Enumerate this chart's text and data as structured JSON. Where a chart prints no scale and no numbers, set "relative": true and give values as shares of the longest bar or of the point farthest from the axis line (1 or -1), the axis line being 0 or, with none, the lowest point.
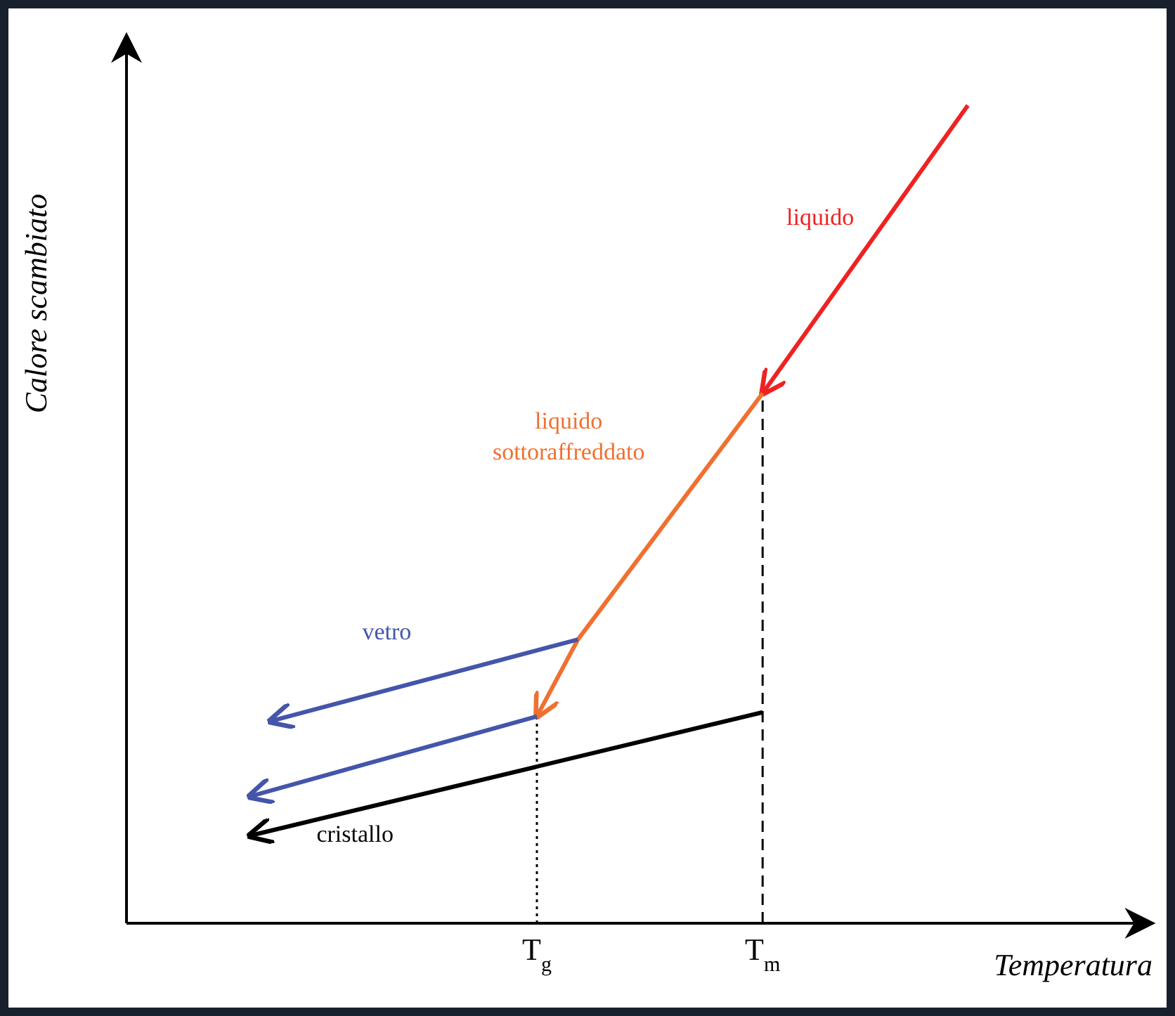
{
  "chart_data": {
    "type": "line",
    "relative": true,
    "xlabel": "Temperatura",
    "ylabel": "Calore scambiato",
    "categories": [
      null,
      null,
      null,
      null,
      null,
      null,
      null,
      null,
      null,
      null,
      null,
      null,
      null,
      null,
      null,
      null,
      null,
      null,
      null,
      null,
      "T$_{g}$",
      null,
      null,
      null,
      null,
      null,
      null,
      null,
      null,
      null,
      null,
      "T$_{m}$",
      null,
      null,
      null,
      null,
      null,
      null,
      null,
      null,
      null,
      null,
      null,
      null,
      null,
      null,
      null,
      null,
      null,
      null,
      null
    ],
    "grid": false,
    "legend": false,
    "marker": "none",
    "ref_lines": [
      {
        "axis": "x",
        "value": "T$_{m}$",
        "line_style": "dashed",
        "color": "#000000"
      },
      {
        "axis": "x",
        "value": "T$_{g}$",
        "line_style": "dotted",
        "color": "#000000"
      }
    ],
    "series": [
      {
        "name": "liquido",
        "color": "#ee2222",
        "line_style": "solid",
        "values": [
          null,
          null,
          null,
          null,
          null,
          null,
          null,
          null,
          null,
          null,
          null,
          null,
          null,
          null,
          null,
          null,
          null,
          null,
          null,
          null,
          null,
          null,
          null,
          null,
          null,
          null,
          null,
          null,
          null,
          null,
          null,
          0.648,
          null,
          null,
          null,
          null,
          null,
          null,
          null,
          null,
          null,
          1,
          null,
          null,
          null,
          null,
          null,
          null,
          null,
          null,
          null
        ]
      },
      {
        "name": "liquido sottoraffreddato",
        "color": "#f07030",
        "line_style": "solid",
        "values": [
          null,
          null,
          null,
          null,
          null,
          null,
          null,
          null,
          null,
          null,
          null,
          null,
          null,
          null,
          null,
          null,
          null,
          null,
          null,
          null,
          0.253,
          null,
          0.347,
          null,
          null,
          null,
          null,
          null,
          null,
          null,
          null,
          0.648,
          null,
          null,
          null,
          null,
          null,
          null,
          null,
          null,
          null,
          null,
          null,
          null,
          null,
          null,
          null,
          null,
          null,
          null,
          null
        ]
      },
      {
        "name": "vetro",
        "color": "#4455aa",
        "line_style": "solid",
        "values": [
          null,
          null,
          null,
          null,
          null,
          null,
          null,
          0.247,
          null,
          null,
          null,
          null,
          null,
          null,
          null,
          null,
          null,
          null,
          null,
          null,
          null,
          null,
          0.347,
          null,
          null,
          null,
          null,
          null,
          null,
          null,
          null,
          null,
          null,
          null,
          null,
          null,
          null,
          null,
          null,
          null,
          null,
          null,
          null,
          null,
          null,
          null,
          null,
          null,
          null,
          null,
          null
        ]
      },
      {
        "color": "#4455aa",
        "line_style": "solid",
        "values": [
          null,
          null,
          null,
          null,
          null,
          null,
          0.155,
          null,
          null,
          null,
          null,
          null,
          null,
          null,
          null,
          null,
          null,
          null,
          null,
          null,
          0.253,
          null,
          null,
          null,
          null,
          null,
          null,
          null,
          null,
          null,
          null,
          null,
          null,
          null,
          null,
          null,
          null,
          null,
          null,
          null,
          null,
          null,
          null,
          null,
          null,
          null,
          null,
          null,
          null,
          null,
          null
        ]
      },
      {
        "name": "cristallo",
        "color": "#000000",
        "line_style": "solid",
        "values": [
          null,
          null,
          null,
          null,
          null,
          null,
          0.107,
          null,
          null,
          null,
          null,
          null,
          null,
          null,
          null,
          null,
          null,
          null,
          null,
          null,
          null,
          null,
          null,
          null,
          null,
          null,
          null,
          null,
          null,
          null,
          null,
          0.258,
          null,
          null,
          null,
          null,
          null,
          null,
          null,
          null,
          null,
          null,
          null,
          null,
          null,
          null,
          null,
          null,
          null,
          null,
          null
        ]
      }
    ]
  }
}
